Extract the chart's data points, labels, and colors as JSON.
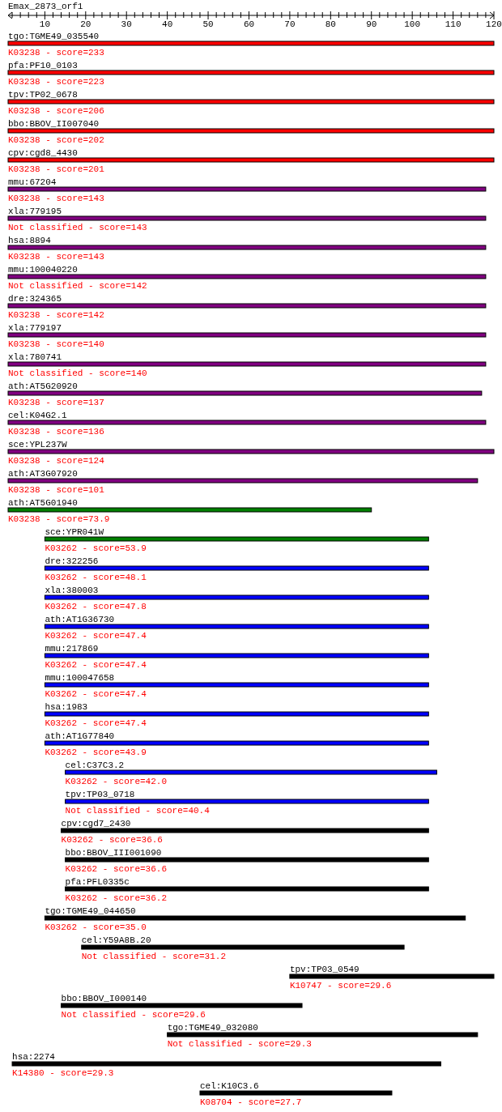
{
  "chart_data": {
    "type": "bar",
    "orientation": "horizontal",
    "title": "Emax_2873_orf1",
    "categories": [
      "tgo:TGME49_035540",
      "pfa:PF10_0103",
      "tpv:TP02_0678",
      "bbo:BBOV_II007040",
      "cpv:cgd8_4430",
      "mmu:67204",
      "xla:779195",
      "hsa:8894",
      "mmu:100040220",
      "dre:324365",
      "xla:779197",
      "xla:780741",
      "ath:AT5G20920",
      "cel:K04G2.1",
      "sce:YPL237W",
      "ath:AT3G07920",
      "ath:AT5G01940",
      "sce:YPR041W",
      "dre:322256",
      "xla:380003",
      "ath:AT1G36730",
      "mmu:217869",
      "mmu:100047658",
      "hsa:1983",
      "ath:AT1G77840",
      "cel:C37C3.2",
      "tpv:TP03_0718",
      "cpv:cgd7_2430",
      "bbo:BBOV_III001090",
      "pfa:PFL0335c",
      "tgo:TGME49_044650",
      "cel:Y59A8B.20",
      "tpv:TP03_0549",
      "bbo:BBOV_I000140",
      "tgo:TGME49_032080",
      "hsa:2274",
      "cel:K10C3.6"
    ],
    "base": [
      1,
      1,
      1,
      1,
      1,
      1,
      1,
      1,
      1,
      1,
      1,
      1,
      1,
      1,
      1,
      1,
      1,
      10,
      10,
      10,
      10,
      10,
      10,
      10,
      10,
      15,
      15,
      14,
      15,
      15,
      10,
      19,
      70,
      14,
      40,
      2,
      48
    ],
    "values": [
      119,
      119,
      119,
      119,
      119,
      117,
      117,
      117,
      117,
      117,
      117,
      117,
      116,
      117,
      119,
      115,
      89,
      94,
      94,
      94,
      94,
      94,
      94,
      94,
      94,
      91,
      89,
      90,
      89,
      89,
      103,
      79,
      50,
      59,
      76,
      105,
      47
    ],
    "colors": [
      "#ff0000",
      "#ff0000",
      "#ff0000",
      "#ff0000",
      "#ff0000",
      "#800080",
      "#800080",
      "#800080",
      "#800080",
      "#800080",
      "#800080",
      "#800080",
      "#800080",
      "#800080",
      "#800080",
      "#800080",
      "#008000",
      "#008000",
      "#0000ff",
      "#0000ff",
      "#0000ff",
      "#0000ff",
      "#0000ff",
      "#0000ff",
      "#0000ff",
      "#0000ff",
      "#0000ff",
      "#000000",
      "#000000",
      "#000000",
      "#000000",
      "#000000",
      "#000000",
      "#000000",
      "#000000",
      "#000000",
      "#000000"
    ],
    "xlim": [
      1,
      120
    ],
    "xticks": [
      10,
      20,
      30,
      40,
      50,
      60,
      70,
      80,
      90,
      100,
      110,
      120
    ],
    "annotations": [
      {
        "text": "K03238 - score=233",
        "x": 1,
        "y": "tgo:TGME49_035540"
      },
      {
        "text": "K03238 - score=223",
        "x": 1,
        "y": "pfa:PF10_0103"
      },
      {
        "text": "K03238 - score=206",
        "x": 1,
        "y": "tpv:TP02_0678"
      },
      {
        "text": "K03238 - score=202",
        "x": 1,
        "y": "bbo:BBOV_II007040"
      },
      {
        "text": "K03238 - score=201",
        "x": 1,
        "y": "cpv:cgd8_4430"
      },
      {
        "text": "K03238 - score=143",
        "x": 1,
        "y": "mmu:67204"
      },
      {
        "text": "Not classified - score=143",
        "x": 1,
        "y": "xla:779195"
      },
      {
        "text": "K03238 - score=143",
        "x": 1,
        "y": "hsa:8894"
      },
      {
        "text": "Not classified - score=142",
        "x": 1,
        "y": "mmu:100040220"
      },
      {
        "text": "K03238 - score=142",
        "x": 1,
        "y": "dre:324365"
      },
      {
        "text": "K03238 - score=140",
        "x": 1,
        "y": "xla:779197"
      },
      {
        "text": "Not classified - score=140",
        "x": 1,
        "y": "xla:780741"
      },
      {
        "text": "K03238 - score=137",
        "x": 1,
        "y": "ath:AT5G20920"
      },
      {
        "text": "K03238 - score=136",
        "x": 1,
        "y": "cel:K04G2.1"
      },
      {
        "text": "K03238 - score=124",
        "x": 1,
        "y": "sce:YPL237W"
      },
      {
        "text": "K03238 - score=101",
        "x": 1,
        "y": "ath:AT3G07920"
      },
      {
        "text": "K03238 - score=73.9",
        "x": 1,
        "y": "ath:AT5G01940"
      },
      {
        "text": "K03262 - score=53.9",
        "x": 10,
        "y": "sce:YPR041W"
      },
      {
        "text": "K03262 - score=48.1",
        "x": 10,
        "y": "dre:322256"
      },
      {
        "text": "K03262 - score=47.8",
        "x": 10,
        "y": "xla:380003"
      },
      {
        "text": "K03262 - score=47.4",
        "x": 10,
        "y": "ath:AT1G36730"
      },
      {
        "text": "K03262 - score=47.4",
        "x": 10,
        "y": "mmu:217869"
      },
      {
        "text": "K03262 - score=47.4",
        "x": 10,
        "y": "mmu:100047658"
      },
      {
        "text": "K03262 - score=47.4",
        "x": 10,
        "y": "hsa:1983"
      },
      {
        "text": "K03262 - score=43.9",
        "x": 10,
        "y": "ath:AT1G77840"
      },
      {
        "text": "K03262 - score=42.0",
        "x": 15,
        "y": "cel:C37C3.2"
      },
      {
        "text": "Not classified - score=40.4",
        "x": 15,
        "y": "tpv:TP03_0718"
      },
      {
        "text": "K03262 - score=36.6",
        "x": 14,
        "y": "cpv:cgd7_2430"
      },
      {
        "text": "K03262 - score=36.6",
        "x": 15,
        "y": "bbo:BBOV_III001090"
      },
      {
        "text": "K03262 - score=36.2",
        "x": 15,
        "y": "pfa:PFL0335c"
      },
      {
        "text": "K03262 - score=35.0",
        "x": 10,
        "y": "tgo:TGME49_044650"
      },
      {
        "text": "Not classified - score=31.2",
        "x": 19,
        "y": "cel:Y59A8B.20"
      },
      {
        "text": "K10747 - score=29.6",
        "x": 70,
        "y": "tpv:TP03_0549"
      },
      {
        "text": "Not classified - score=29.6",
        "x": 14,
        "y": "bbo:BBOV_I000140"
      },
      {
        "text": "Not classified - score=29.3",
        "x": 40,
        "y": "tgo:TGME49_032080"
      },
      {
        "text": "K14380 - score=29.3",
        "x": 2,
        "y": "hsa:2274"
      },
      {
        "text": "K08704 - score=27.7",
        "x": 48,
        "y": "cel:K10C3.6"
      }
    ]
  }
}
